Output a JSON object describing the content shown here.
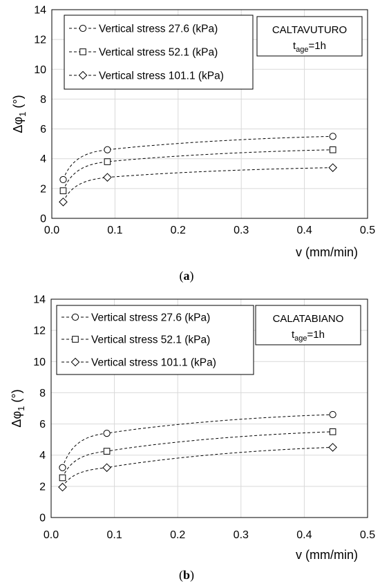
{
  "chart_data": [
    {
      "type": "line",
      "panel_label_open": "(",
      "panel_label_letter": "a",
      "panel_label_close": ")",
      "xlabel": "v (mm/min)",
      "ylabel_main": "Δφ",
      "ylabel_sub": "1",
      "ylabel_unit": " (°)",
      "xlim": [
        0,
        0.5
      ],
      "ylim": [
        0,
        14
      ],
      "xticks": [
        "0.0",
        "0.1",
        "0.2",
        "0.3",
        "0.4",
        "0.5"
      ],
      "yticks": [
        "0",
        "2",
        "4",
        "6",
        "8",
        "10",
        "12",
        "14"
      ],
      "grid": true,
      "site_label": "CALTAVUTURO",
      "age_main": "t",
      "age_sub": "age",
      "age_value": "=1h",
      "x": [
        0.018,
        0.088,
        0.445
      ],
      "series": [
        {
          "name": "Vertical stress 27.6 (kPa)",
          "marker": "circle",
          "values": [
            2.6,
            4.6,
            5.5
          ]
        },
        {
          "name": "Vertical stress 52.1 (kPa)",
          "marker": "square",
          "values": [
            1.85,
            3.8,
            4.6
          ]
        },
        {
          "name": "Vertical stress 101.1 (kPa)",
          "marker": "diamond",
          "values": [
            1.1,
            2.75,
            3.4
          ]
        }
      ]
    },
    {
      "type": "line",
      "panel_label_open": "(",
      "panel_label_letter": "b",
      "panel_label_close": ")",
      "xlabel": "v (mm/min)",
      "ylabel_main": "Δφ",
      "ylabel_sub": "1",
      "ylabel_unit": " (°)",
      "xlim": [
        0,
        0.5
      ],
      "ylim": [
        0,
        14
      ],
      "xticks": [
        "0.0",
        "0.1",
        "0.2",
        "0.3",
        "0.4",
        "0.5"
      ],
      "yticks": [
        "0",
        "2",
        "4",
        "6",
        "8",
        "10",
        "12",
        "14"
      ],
      "grid": true,
      "site_label": "CALATABIANO",
      "age_main": "t",
      "age_sub": "age",
      "age_value": "=1h",
      "x": [
        0.018,
        0.088,
        0.445
      ],
      "series": [
        {
          "name": "Vertical stress 27.6 (kPa)",
          "marker": "circle",
          "values": [
            3.2,
            5.4,
            6.6
          ]
        },
        {
          "name": "Vertical stress 52.1 (kPa)",
          "marker": "square",
          "values": [
            2.55,
            4.25,
            5.5
          ]
        },
        {
          "name": "Vertical stress 101.1 (kPa)",
          "marker": "diamond",
          "values": [
            1.95,
            3.2,
            4.5
          ]
        }
      ]
    }
  ],
  "colors": {
    "line": "#000000",
    "grid": "#d9d9d9",
    "marker_fill": "#ffffff"
  }
}
